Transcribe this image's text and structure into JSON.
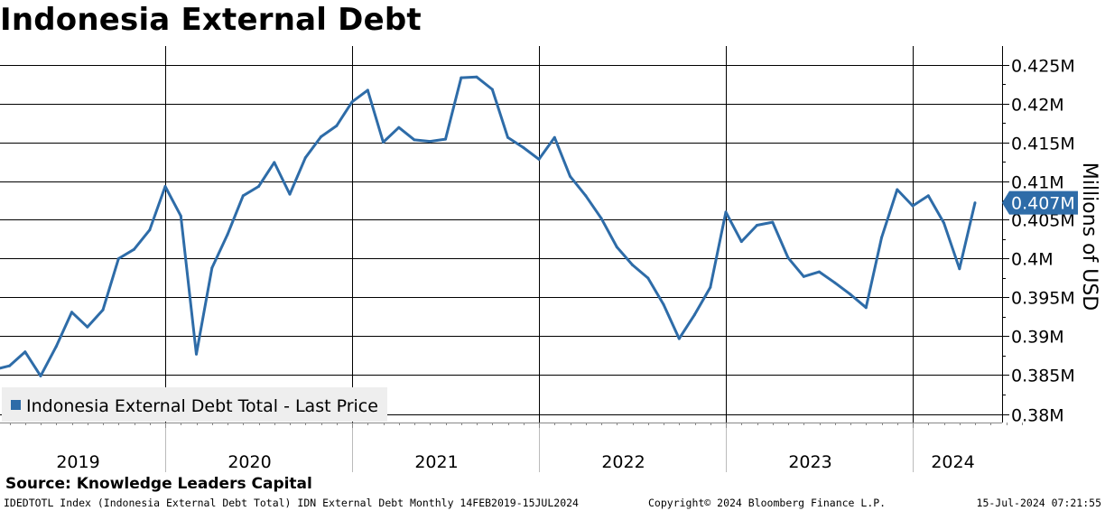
{
  "page": {
    "title": "Indonesia External Debt",
    "source": "Source: Knowledge Leaders Capital",
    "footer_left": "IDEDTOTL Index (Indonesia External Debt Total) IDN External Debt  Monthly 14FEB2019-15JUL2024",
    "footer_center": "Copyright© 2024 Bloomberg Finance L.P.",
    "footer_right": "15-Jul-2024 07:21:55"
  },
  "colors": {
    "line": "#2e6ca8",
    "grid": "#000000",
    "legend_bg": "#eeeeee",
    "label_bg": "#2e6ca8"
  },
  "chart_data": {
    "type": "line",
    "title": "Indonesia External Debt",
    "ylabel": "Millions of USD",
    "xlabel": "",
    "ylim": [
      0.38,
      0.425
    ],
    "y_ticks": [
      0.38,
      0.385,
      0.39,
      0.395,
      0.4,
      0.405,
      0.41,
      0.415,
      0.42,
      0.425
    ],
    "y_tick_labels": [
      "0.38M",
      "0.385M",
      "0.39M",
      "0.395M",
      "0.4M",
      "0.405M",
      "0.41M",
      "0.415M",
      "0.42M",
      "0.425M"
    ],
    "x_labels": [
      "2019",
      "2020",
      "2021",
      "2022",
      "2023",
      "2024"
    ],
    "grid": true,
    "legend_position": "bottom-left",
    "last_value_label": "0.407M",
    "series": [
      {
        "name": "Indonesia External Debt Total - Last Price",
        "x": [
          "2019-02",
          "2019-03",
          "2019-04",
          "2019-05",
          "2019-06",
          "2019-07",
          "2019-08",
          "2019-09",
          "2019-10",
          "2019-11",
          "2019-12",
          "2020-01",
          "2020-02",
          "2020-03",
          "2020-04",
          "2020-05",
          "2020-06",
          "2020-07",
          "2020-08",
          "2020-09",
          "2020-10",
          "2020-11",
          "2020-12",
          "2021-01",
          "2021-02",
          "2021-03",
          "2021-04",
          "2021-05",
          "2021-06",
          "2021-07",
          "2021-08",
          "2021-09",
          "2021-10",
          "2021-11",
          "2021-12",
          "2022-01",
          "2022-02",
          "2022-03",
          "2022-04",
          "2022-05",
          "2022-06",
          "2022-07",
          "2022-08",
          "2022-09",
          "2022-10",
          "2022-11",
          "2022-12",
          "2023-01",
          "2023-02",
          "2023-03",
          "2023-04",
          "2023-05",
          "2023-06",
          "2023-07",
          "2023-08",
          "2023-09",
          "2023-10",
          "2023-11",
          "2023-12",
          "2024-01",
          "2024-02",
          "2024-03",
          "2024-04",
          "2024-05"
        ],
        "values": [
          0.3857,
          0.3862,
          0.388,
          0.3849,
          0.3887,
          0.3931,
          0.3912,
          0.3934,
          0.4,
          0.4012,
          0.4037,
          0.4093,
          0.4055,
          0.3877,
          0.3988,
          0.4031,
          0.4081,
          0.4093,
          0.4124,
          0.4083,
          0.413,
          0.4157,
          0.4171,
          0.4202,
          0.4217,
          0.415,
          0.4169,
          0.4153,
          0.4151,
          0.4154,
          0.4233,
          0.4234,
          0.4218,
          0.4156,
          0.4143,
          0.4128,
          0.4156,
          0.4106,
          0.4081,
          0.4052,
          0.4015,
          0.3992,
          0.3975,
          0.3941,
          0.3897,
          0.3928,
          0.3963,
          0.406,
          0.4022,
          0.4043,
          0.4047,
          0.4001,
          0.3977,
          0.3983,
          0.3969,
          0.3954,
          0.3937,
          0.4027,
          0.4089,
          0.4068,
          0.4081,
          0.4046,
          0.3987,
          0.4072
        ]
      }
    ]
  }
}
